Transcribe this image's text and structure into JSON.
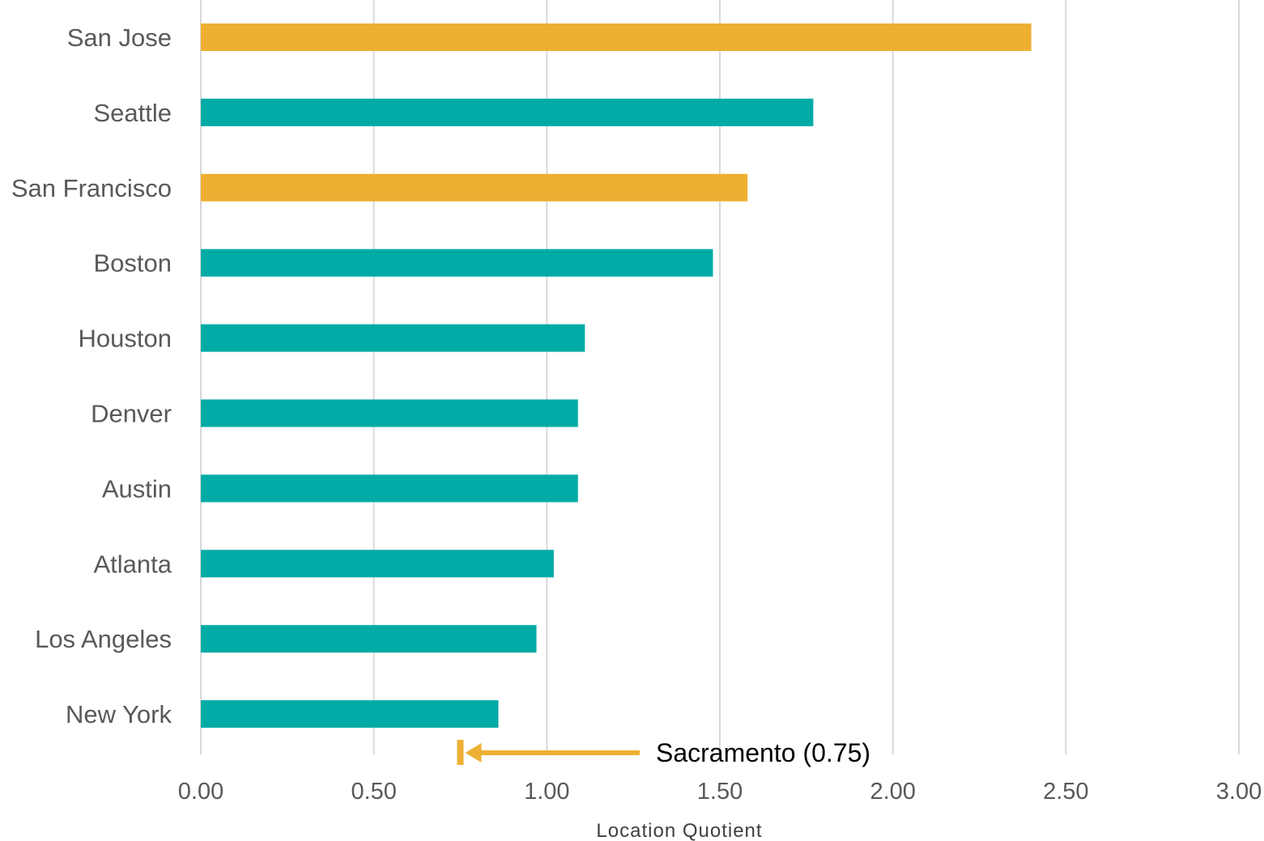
{
  "chart_data": {
    "type": "bar",
    "orientation": "horizontal",
    "categories": [
      "San Jose",
      "Seattle",
      "San Francisco",
      "Boston",
      "Houston",
      "Denver",
      "Austin",
      "Atlanta",
      "Los Angeles",
      "New York"
    ],
    "values": [
      2.4,
      1.77,
      1.58,
      1.48,
      1.11,
      1.09,
      1.09,
      1.02,
      0.97,
      0.86
    ],
    "bar_colors": [
      "#EEB033",
      "#00ABA5",
      "#EEB033",
      "#00ABA5",
      "#00ABA5",
      "#00ABA5",
      "#00ABA5",
      "#00ABA5",
      "#00ABA5",
      "#00ABA5"
    ],
    "xlabel": "Location Quotient",
    "ylabel": "",
    "title": "",
    "xlim": [
      0,
      3
    ],
    "xticks": [
      0,
      0.5,
      1,
      1.5,
      2,
      2.5,
      3
    ],
    "xtick_labels": [
      "0.00",
      "0.50",
      "1.00",
      "1.50",
      "2.00",
      "2.50",
      "3.00"
    ],
    "grid": "vertical",
    "legend": "none",
    "annotation": {
      "text": "Sacramento (0.75)",
      "value": 0.75,
      "color": "#EEB033"
    }
  }
}
